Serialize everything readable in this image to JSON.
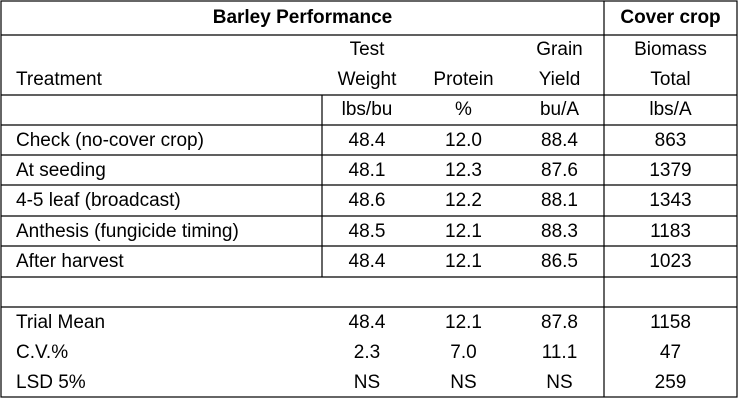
{
  "table": {
    "group_headers": [
      "Barley Performance",
      "Cover crop"
    ],
    "columns": [
      {
        "header": [
          "Treatment"
        ]
      },
      {
        "header": [
          "Test",
          "Weight"
        ],
        "unit": "lbs/bu"
      },
      {
        "header": [
          "Protein"
        ],
        "unit": "%"
      },
      {
        "header": [
          "Grain",
          "Yield"
        ],
        "unit": "bu/A"
      },
      {
        "header": [
          "Biomass",
          "Total"
        ],
        "unit": "lbs/A"
      }
    ],
    "rows": [
      [
        "Check (no-cover crop)",
        "48.4",
        "12.0",
        "88.4",
        "863"
      ],
      [
        "At seeding",
        "48.1",
        "12.3",
        "87.6",
        "1379"
      ],
      [
        "4-5 leaf (broadcast)",
        "48.6",
        "12.2",
        "88.1",
        "1343"
      ],
      [
        "Anthesis (fungicide timing)",
        "48.5",
        "12.1",
        "88.3",
        "1183"
      ],
      [
        "After harvest",
        "48.4",
        "12.1",
        "86.5",
        "1023"
      ]
    ],
    "summary_rows": [
      [
        "Trial Mean",
        "48.4",
        "12.1",
        "87.8",
        "1158"
      ],
      [
        "C.V.%",
        "2.3",
        "7.0",
        "11.1",
        "47"
      ],
      [
        "LSD 5%",
        "NS",
        "NS",
        "NS",
        "259"
      ]
    ]
  }
}
